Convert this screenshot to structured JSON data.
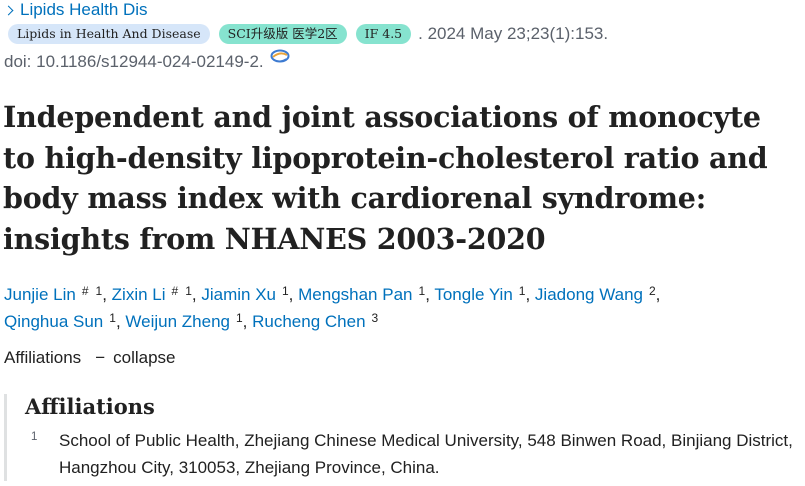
{
  "journal": {
    "name": "Lipids Health Dis"
  },
  "badges": [
    {
      "label": "Lipids in Health And Disease",
      "color": "#d6e6f9"
    },
    {
      "label": "SCI升级版 医学2区",
      "color": "#86e3cf"
    },
    {
      "label": "IF 4.5",
      "color": "#86e3cf"
    }
  ],
  "publication": {
    "date_citation": ". 2024 May 23;23(1):153.",
    "doi": "doi: 10.1186/s12944-024-02149-2."
  },
  "article": {
    "title": "Independent and joint associations of monocyte to high-density lipoprotein-cholesterol ratio and body mass index with cardiorenal syndrome: insights from NHANES 2003-2020"
  },
  "authors": [
    {
      "name": "Junjie Lin",
      "equal": "#",
      "aff": "1"
    },
    {
      "name": "Zixin Li",
      "equal": "#",
      "aff": "1"
    },
    {
      "name": "Jiamin Xu",
      "equal": "",
      "aff": "1"
    },
    {
      "name": "Mengshan Pan",
      "equal": "",
      "aff": "1"
    },
    {
      "name": "Tongle Yin",
      "equal": "",
      "aff": "1"
    },
    {
      "name": "Jiadong Wang",
      "equal": "",
      "aff": "2"
    },
    {
      "name": "Qinghua Sun",
      "equal": "",
      "aff": "1"
    },
    {
      "name": "Weijun Zheng",
      "equal": "",
      "aff": "1"
    },
    {
      "name": "Rucheng Chen",
      "equal": "",
      "aff": "3"
    }
  ],
  "affiliations_toggle": {
    "label": "Affiliations",
    "dash": "−",
    "action": "collapse"
  },
  "affiliations": {
    "heading": "Affiliations",
    "items": [
      {
        "num": "1",
        "text": "School of Public Health, Zhejiang Chinese Medical University, 548 Binwen Road, Binjiang District, Hangzhou City, 310053, Zhejiang Province, China."
      }
    ]
  },
  "colors": {
    "link": "#0071bc",
    "text": "#212121",
    "muted": "#5b616b"
  },
  "icons": {
    "journal_chevron": "chevron-right-icon",
    "doi": "link-icon"
  }
}
